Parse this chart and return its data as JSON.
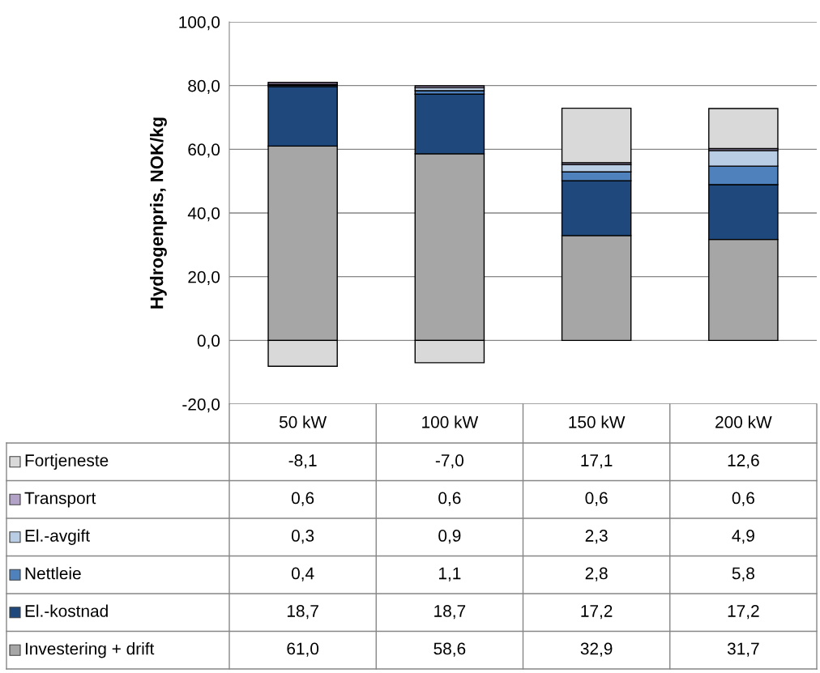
{
  "chart_data": {
    "type": "bar",
    "stacked": true,
    "ylabel": "Hydrogenpris, NOK/kg",
    "categories": [
      "50 kW",
      "100 kW",
      "150 kW",
      "200 kW"
    ],
    "ylim": [
      -20,
      100
    ],
    "yticks": [
      {
        "value": -20,
        "label": "-20,0"
      },
      {
        "value": 0,
        "label": "0,0"
      },
      {
        "value": 20,
        "label": "20,0"
      },
      {
        "value": 40,
        "label": "40,0"
      },
      {
        "value": 60,
        "label": "60,0"
      },
      {
        "value": 80,
        "label": "80,0"
      },
      {
        "value": 100,
        "label": "100,0"
      }
    ],
    "grid": "y",
    "legend": "bottom",
    "series": [
      {
        "name": "Investering + drift",
        "color": "#a6a6a6",
        "values": [
          61.0,
          58.6,
          32.9,
          31.7
        ],
        "value_labels": [
          "61,0",
          "58,6",
          "32,9",
          "31,7"
        ]
      },
      {
        "name": "El.-kostnad",
        "color": "#1f497d",
        "values": [
          18.7,
          18.7,
          17.2,
          17.2
        ],
        "value_labels": [
          "18,7",
          "18,7",
          "17,2",
          "17,2"
        ]
      },
      {
        "name": "Nettleie",
        "color": "#4f81bd",
        "values": [
          0.4,
          1.1,
          2.8,
          5.8
        ],
        "value_labels": [
          "0,4",
          "1,1",
          "2,8",
          "5,8"
        ]
      },
      {
        "name": "El.-avgift",
        "color": "#b9cde5",
        "values": [
          0.3,
          0.9,
          2.3,
          4.9
        ],
        "value_labels": [
          "0,3",
          "0,9",
          "2,3",
          "4,9"
        ]
      },
      {
        "name": "Transport",
        "color": "#b3a2c7",
        "values": [
          0.6,
          0.6,
          0.6,
          0.6
        ],
        "value_labels": [
          "0,6",
          "0,6",
          "0,6",
          "0,6"
        ]
      },
      {
        "name": "Fortjeneste",
        "color": "#d9d9d9",
        "values": [
          -8.1,
          -7.0,
          17.1,
          12.6
        ],
        "value_labels": [
          "-8,1",
          "-7,0",
          "17,1",
          "12,6"
        ]
      }
    ]
  }
}
